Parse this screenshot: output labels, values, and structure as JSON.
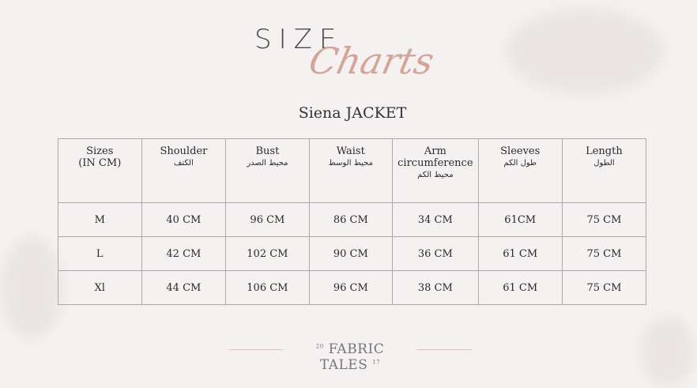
{
  "logo": {
    "size": "SIZE",
    "charts": "Charts"
  },
  "title": "Siena JACKET",
  "table": {
    "headers": [
      {
        "en": "Sizes",
        "en2": "(IN CM)",
        "ar": ""
      },
      {
        "en": "Shoulder",
        "en2": "",
        "ar": "الكتف"
      },
      {
        "en": "Bust",
        "en2": "",
        "ar": "محيط الصدر"
      },
      {
        "en": "Waist",
        "en2": "",
        "ar": "محيط الوسط"
      },
      {
        "en": "Arm",
        "en2": "circumference",
        "ar": "محيط الكم"
      },
      {
        "en": "Sleeves",
        "en2": "",
        "ar": "طول الكم"
      },
      {
        "en": "Length",
        "en2": "",
        "ar": "الطول"
      }
    ],
    "rows": [
      [
        "M",
        "40 CM",
        "96 CM",
        "86 CM",
        "34 CM",
        "61CM",
        "75 CM"
      ],
      [
        "L",
        "42 CM",
        "102 CM",
        "90 CM",
        "36 CM",
        "61 CM",
        "75 CM"
      ],
      [
        "Xl",
        "44 CM",
        "106 CM",
        "96 CM",
        "38 CM",
        "61 CM",
        "75 CM"
      ]
    ]
  },
  "footer": {
    "brand": "FABRIC TALES",
    "year_left": "20",
    "year_right": "17"
  },
  "colors": {
    "background": "#f4f1f0",
    "accent": "#d2a49a",
    "border": "#a9a9a9"
  }
}
